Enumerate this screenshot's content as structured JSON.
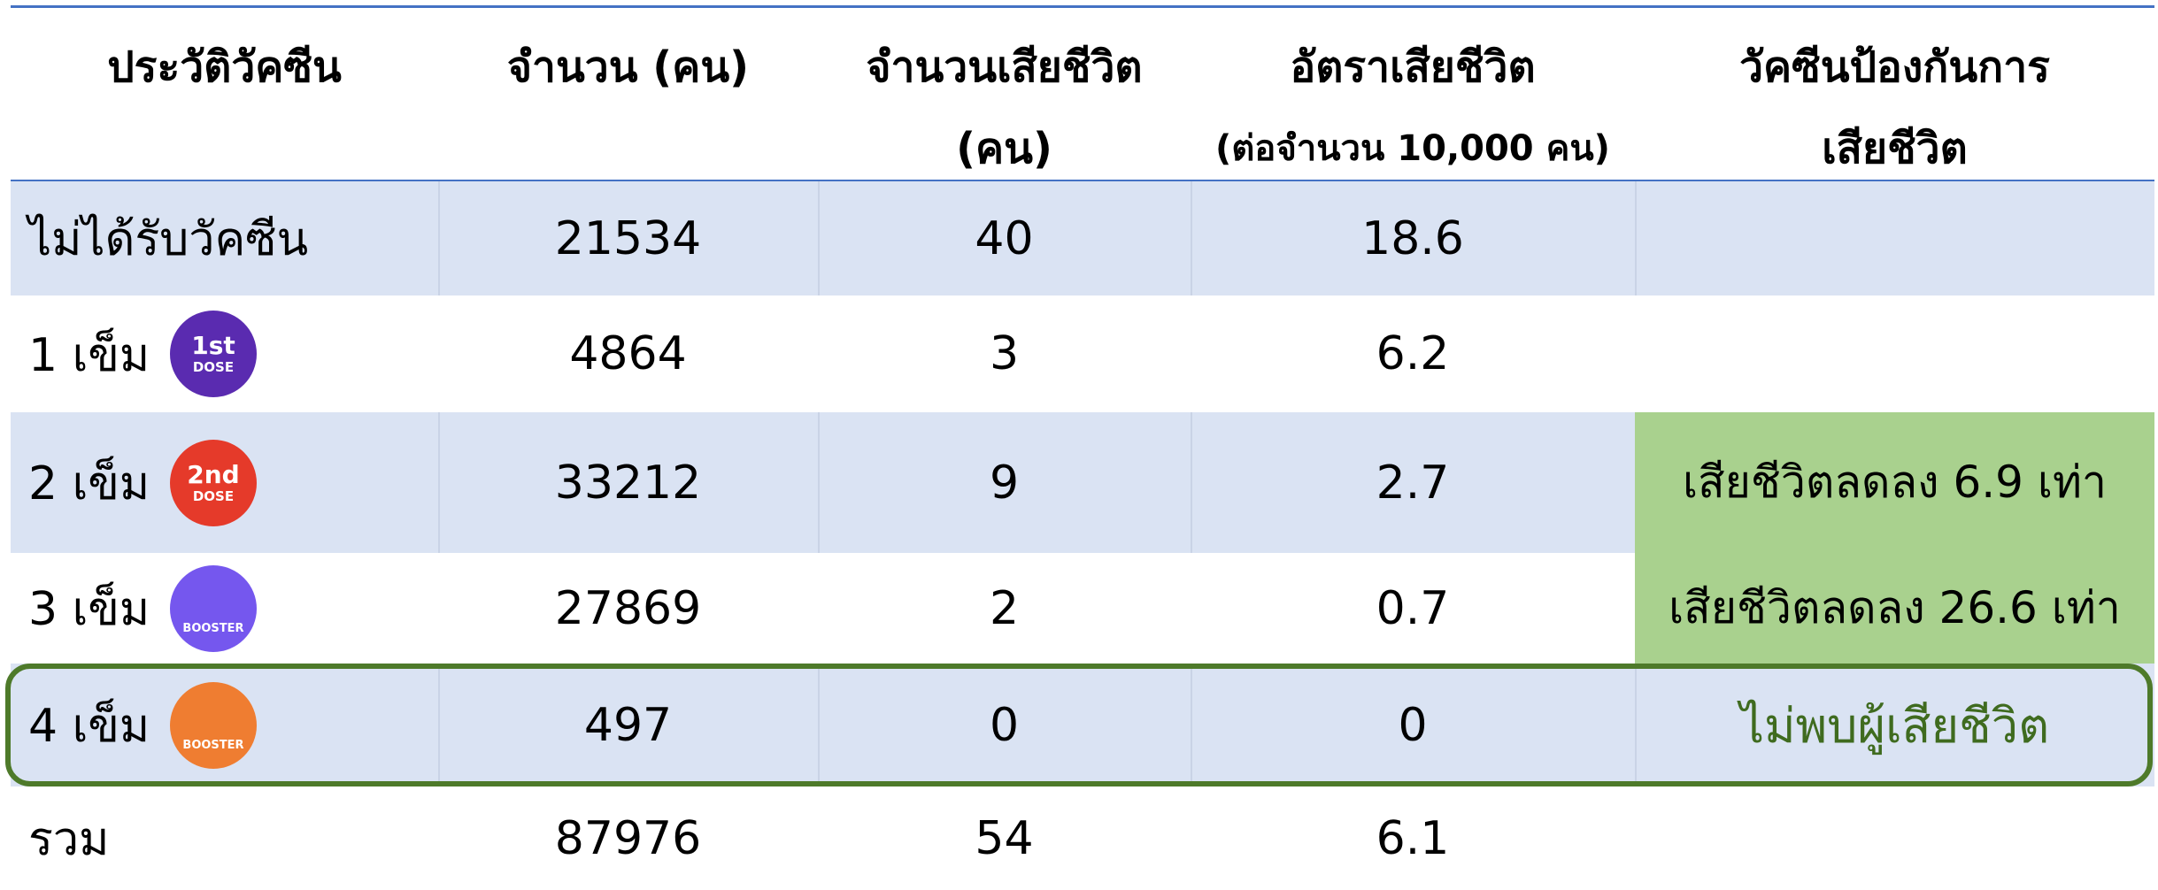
{
  "header": {
    "columns": [
      [
        "ประวัติวัคซีน"
      ],
      [
        "จำนวน (คน)"
      ],
      [
        "จำนวนเสียชีวิต",
        "(คน)"
      ],
      [
        "อัตราเสียชีวิต",
        "(ต่อจำนวน 10,000 คน)"
      ],
      [
        "วัคซีนป้องกันการ",
        "เสียชีวิต"
      ]
    ]
  },
  "rows": [
    {
      "label": "ไม่ได้รับวัคซีน",
      "values": [
        21534,
        40,
        18.6
      ]
    },
    {
      "label": "1 เข็ม",
      "badge": {
        "color": "#5a2bb0",
        "lines": [
          "1st",
          "DOSE"
        ]
      },
      "values": [
        4864,
        3,
        6.2
      ]
    },
    {
      "label": "2 เข็ม",
      "badge": {
        "color": "#e53a2a",
        "lines": [
          "2nd",
          "DOSE"
        ]
      },
      "values": [
        33212,
        9,
        2.7
      ],
      "note": "เสียชีวิตลดลง 6.9 เท่า"
    },
    {
      "label": "3 เข็ม",
      "badge": {
        "color": "#7557ee",
        "lines": [
          "BOOSTER"
        ]
      },
      "values": [
        27869,
        2,
        0.7
      ],
      "note": "เสียชีวิตลดลง 26.6 เท่า"
    },
    {
      "label": "4 เข็ม",
      "badge": {
        "color": "#ef7d31",
        "lines": [
          "BOOSTER"
        ]
      },
      "values": [
        497,
        0,
        0
      ],
      "note": "ไม่พบผู้เสียชีวิต"
    },
    {
      "label": "รวม",
      "values": [
        87976,
        54,
        6.1
      ]
    }
  ]
}
